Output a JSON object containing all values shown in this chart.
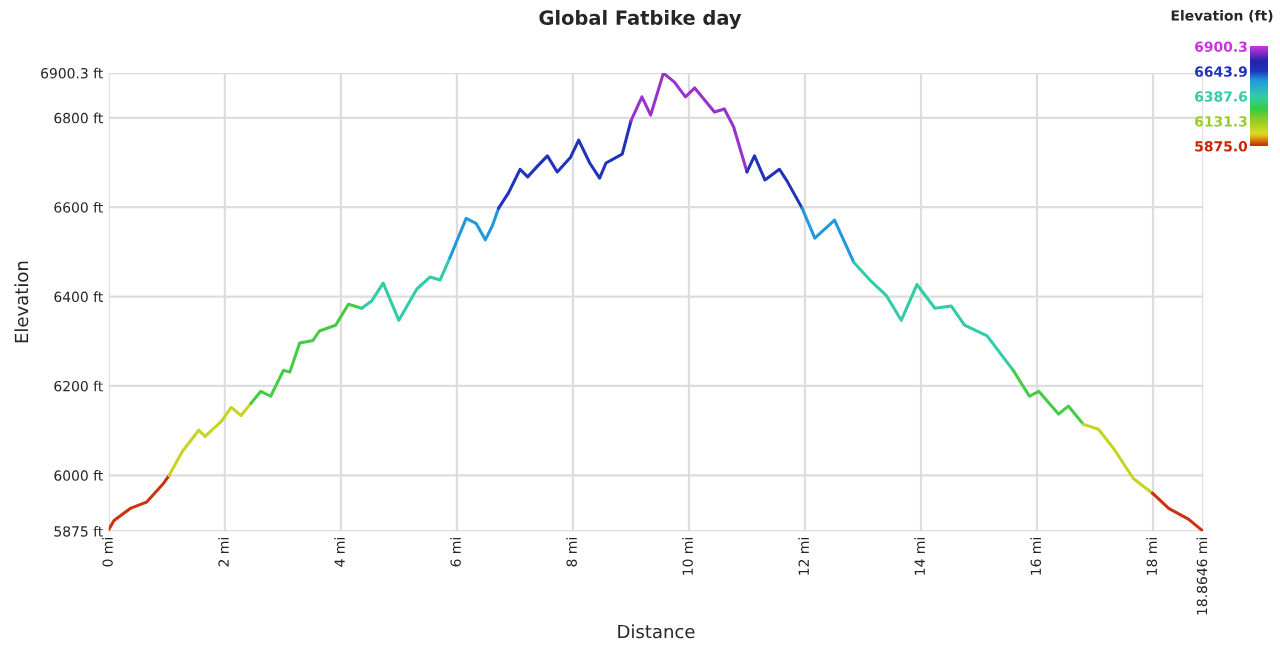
{
  "chart_data": {
    "type": "line",
    "title": "Global Fatbike day",
    "xlabel": "Distance",
    "ylabel": "Elevation",
    "clabel": "Elevation (ft)",
    "clim": [
      5875.0,
      6900.3
    ],
    "cticks": [
      {
        "value": 6900.3,
        "label": "6900.3"
      },
      {
        "value": 6643.9,
        "label": "6643.9"
      },
      {
        "value": 6387.6,
        "label": "6387.6"
      },
      {
        "value": 6131.3,
        "label": "6131.3"
      },
      {
        "value": 5875.0,
        "label": "5875.0"
      }
    ],
    "grid": true,
    "line_style": "solid",
    "xlim": [
      0,
      18.8646
    ],
    "ylim": [
      5875,
      6900.3
    ],
    "xticks": [
      {
        "value": 0,
        "label": "0 mi"
      },
      {
        "value": 2,
        "label": "2 mi"
      },
      {
        "value": 4,
        "label": "4 mi"
      },
      {
        "value": 6,
        "label": "6 mi"
      },
      {
        "value": 8,
        "label": "8 mi"
      },
      {
        "value": 10,
        "label": "10 mi"
      },
      {
        "value": 12,
        "label": "12 mi"
      },
      {
        "value": 14,
        "label": "14 mi"
      },
      {
        "value": 16,
        "label": "16 mi"
      },
      {
        "value": 18,
        "label": "18 mi"
      },
      {
        "value": 18.8646,
        "label": "18.8646 mi"
      }
    ],
    "yticks": [
      {
        "value": 5875,
        "label": "5875 ft"
      },
      {
        "value": 6000,
        "label": "6000 ft"
      },
      {
        "value": 6200,
        "label": "6200 ft"
      },
      {
        "value": 6400,
        "label": "6400 ft"
      },
      {
        "value": 6600,
        "label": "6600 ft"
      },
      {
        "value": 6800,
        "label": "6800 ft"
      },
      {
        "value": 6900.3,
        "label": "6900.3 ft"
      }
    ],
    "series": [
      {
        "color": "#cc3311",
        "x": [
          0,
          0.09,
          0.37,
          0.65,
          0.93,
          1.04
        ],
        "values": [
          5879,
          5899,
          5926,
          5940,
          5980,
          6000
        ]
      },
      {
        "color": "#c8d422",
        "x": [
          1.04,
          1.27,
          1.55,
          1.66,
          1.94,
          2.11,
          2.28,
          2.45
        ],
        "values": [
          6000,
          6054,
          6101,
          6087,
          6121,
          6152,
          6134,
          6161
        ]
      },
      {
        "color": "#44cc44",
        "x": [
          2.45,
          2.62,
          2.79,
          3.01,
          3.12,
          3.29,
          3.52,
          3.63,
          3.91,
          4.13,
          4.36
        ],
        "values": [
          6161,
          6188,
          6177,
          6235,
          6231,
          6296,
          6302,
          6323,
          6336,
          6383,
          6374
        ]
      },
      {
        "color": "#33ccaa",
        "x": [
          4.36,
          4.53,
          4.73,
          5.0,
          5.31,
          5.54,
          5.71,
          5.88
        ],
        "values": [
          6374,
          6390,
          6430,
          6347,
          6417,
          6444,
          6437,
          6487
        ]
      },
      {
        "color": "#2299dd",
        "x": [
          5.88,
          6.16,
          6.33,
          6.49,
          6.61,
          6.72
        ],
        "values": [
          6487,
          6575,
          6564,
          6527,
          6558,
          6598
        ]
      },
      {
        "color": "#2233bb",
        "x": [
          6.72,
          6.89,
          7.09,
          7.22,
          7.39,
          7.56,
          7.73,
          7.96,
          8.1,
          8.29,
          8.46,
          8.57,
          8.85,
          9.0
        ],
        "values": [
          6598,
          6632,
          6685,
          6668,
          6692,
          6715,
          6679,
          6712,
          6750,
          6699,
          6665,
          6699,
          6719,
          6793
        ]
      },
      {
        "color": "#9933cc",
        "x": [
          9.0,
          9.19,
          9.34,
          9.56,
          9.75,
          9.94,
          10.1,
          10.44,
          10.61,
          10.77,
          11.0
        ],
        "values": [
          6793,
          6847,
          6806,
          6900,
          6880,
          6847,
          6867,
          6813,
          6820,
          6780,
          6679
        ]
      },
      {
        "color": "#2233bb",
        "x": [
          11.0,
          11.13,
          11.31,
          11.56,
          11.69,
          11.95
        ],
        "values": [
          6679,
          6715,
          6661,
          6685,
          6659,
          6598
        ]
      },
      {
        "color": "#2299dd",
        "x": [
          11.95,
          12.17,
          12.51,
          12.84
        ],
        "values": [
          6598,
          6531,
          6571,
          6477
        ]
      },
      {
        "color": "#33ccaa",
        "x": [
          12.84,
          13.12,
          13.4,
          13.66,
          13.93,
          14.24,
          14.52,
          14.75,
          15.14,
          15.59
        ],
        "values": [
          6477,
          6437,
          6403,
          6347,
          6427,
          6374,
          6379,
          6336,
          6312,
          6235
        ]
      },
      {
        "color": "#44cc44",
        "x": [
          15.59,
          15.87,
          16.03,
          16.37,
          16.54,
          16.8
        ],
        "values": [
          6235,
          6177,
          6188,
          6137,
          6155,
          6114
        ]
      },
      {
        "color": "#c8d422",
        "x": [
          16.8,
          17.06,
          17.32,
          17.66,
          17.99
        ],
        "values": [
          6114,
          6103,
          6060,
          5993,
          5960
        ]
      },
      {
        "color": "#cc3311",
        "x": [
          17.99,
          18.27,
          18.61,
          18.8646
        ],
        "values": [
          5960,
          5926,
          5902,
          5875
        ]
      }
    ]
  }
}
